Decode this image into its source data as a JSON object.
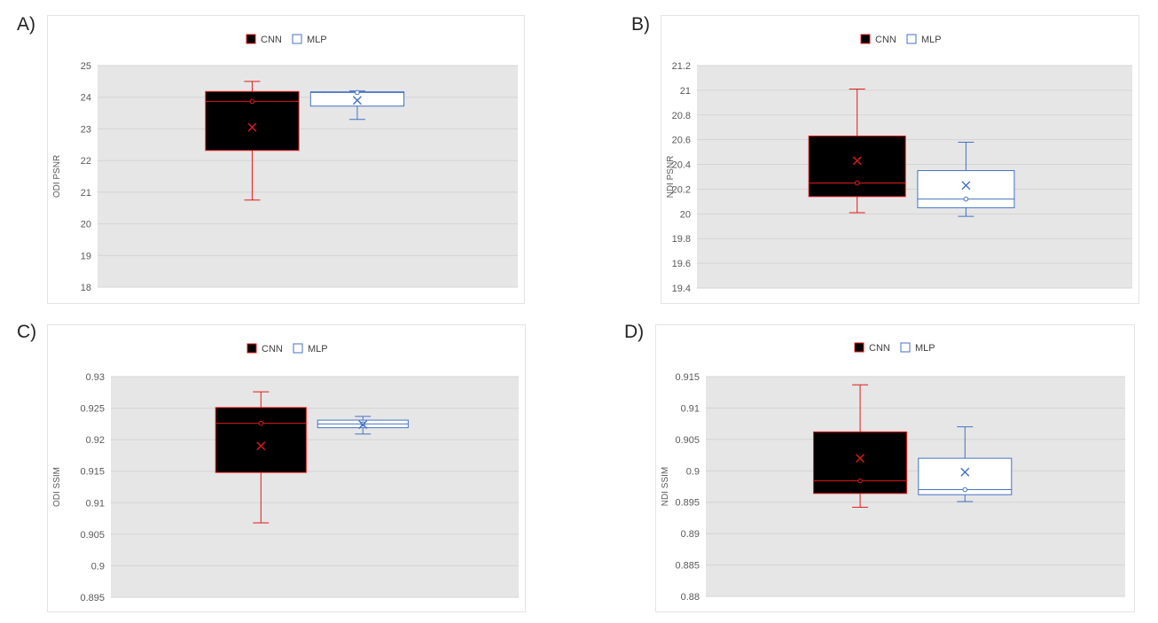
{
  "panels": [
    {
      "letter": "A)",
      "legend": [
        "CNN",
        "MLP"
      ],
      "chart_data": {
        "type": "box",
        "ylabel": "ODI PSNR",
        "ylim": [
          18,
          25
        ],
        "ticks": [
          "18",
          "19",
          "20",
          "21",
          "22",
          "23",
          "24",
          "25"
        ],
        "tick_values": [
          18,
          19,
          20,
          21,
          22,
          23,
          24,
          25
        ],
        "grid": true,
        "legend_position": "top",
        "series": [
          {
            "name": "CNN",
            "min": 20.75,
            "q1": 22.32,
            "median": 23.87,
            "q3": 24.18,
            "max": 24.5,
            "mean": 23.05
          },
          {
            "name": "MLP",
            "min": 23.3,
            "q1": 23.72,
            "median": 24.15,
            "q3": 24.17,
            "max": 24.2,
            "mean": 23.9
          }
        ]
      }
    },
    {
      "letter": "B)",
      "legend": [
        "CNN",
        "MLP"
      ],
      "chart_data": {
        "type": "box",
        "ylabel": "NDI PSNR",
        "ylim": [
          19.4,
          21.2
        ],
        "ticks": [
          "19.4",
          "19.6",
          "19.8",
          "20",
          "20.2",
          "20.4",
          "20.6",
          "20.8",
          "21",
          "21.2"
        ],
        "tick_values": [
          19.4,
          19.6,
          19.8,
          20,
          20.2,
          20.4,
          20.6,
          20.8,
          21,
          21.2
        ],
        "grid": true,
        "legend_position": "top",
        "series": [
          {
            "name": "CNN",
            "min": 20.01,
            "q1": 20.14,
            "median": 20.25,
            "q3": 20.63,
            "max": 21.01,
            "mean": 20.43
          },
          {
            "name": "MLP",
            "min": 19.98,
            "q1": 20.05,
            "median": 20.12,
            "q3": 20.35,
            "max": 20.58,
            "mean": 20.23
          }
        ]
      }
    },
    {
      "letter": "C)",
      "legend": [
        "CNN",
        "MLP"
      ],
      "chart_data": {
        "type": "box",
        "ylabel": "ODI SSIM",
        "ylim": [
          0.895,
          0.93
        ],
        "ticks": [
          "0.895",
          "0.9",
          "0.905",
          "0.91",
          "0.915",
          "0.92",
          "0.925",
          "0.93"
        ],
        "tick_values": [
          0.895,
          0.9,
          0.905,
          0.91,
          0.915,
          0.92,
          0.925,
          0.93
        ],
        "grid": true,
        "legend_position": "top",
        "series": [
          {
            "name": "CNN",
            "min": 0.9068,
            "q1": 0.9148,
            "median": 0.9226,
            "q3": 0.9251,
            "max": 0.9276,
            "mean": 0.919
          },
          {
            "name": "MLP",
            "min": 0.9209,
            "q1": 0.9219,
            "median": 0.9225,
            "q3": 0.9231,
            "max": 0.9237,
            "mean": 0.9224
          }
        ]
      }
    },
    {
      "letter": "D)",
      "legend": [
        "CNN",
        "MLP"
      ],
      "chart_data": {
        "type": "box",
        "ylabel": "NDI SSIM",
        "ylim": [
          0.88,
          0.915
        ],
        "ticks": [
          "0.88",
          "0.885",
          "0.89",
          "0.895",
          "0.9",
          "0.905",
          "0.91",
          "0.915"
        ],
        "tick_values": [
          0.88,
          0.885,
          0.89,
          0.895,
          0.9,
          0.905,
          0.91,
          0.915
        ],
        "grid": true,
        "legend_position": "top",
        "series": [
          {
            "name": "CNN",
            "min": 0.8942,
            "q1": 0.8964,
            "median": 0.8984,
            "q3": 0.9062,
            "max": 0.9137,
            "mean": 0.902
          },
          {
            "name": "MLP",
            "min": 0.8951,
            "q1": 0.8962,
            "median": 0.897,
            "q3": 0.902,
            "max": 0.907,
            "mean": 0.8998
          }
        ]
      }
    }
  ],
  "colors": {
    "cnn_fill": "#000000",
    "cnn_stroke": "#e01b1b",
    "cnn_mean": "#e01b1b",
    "mlp_fill": "#ffffff",
    "mlp_stroke": "#4472c4",
    "plot_bg": "#e6e6e6",
    "grid": "#d4d4d4",
    "tick_text": "#595959"
  }
}
